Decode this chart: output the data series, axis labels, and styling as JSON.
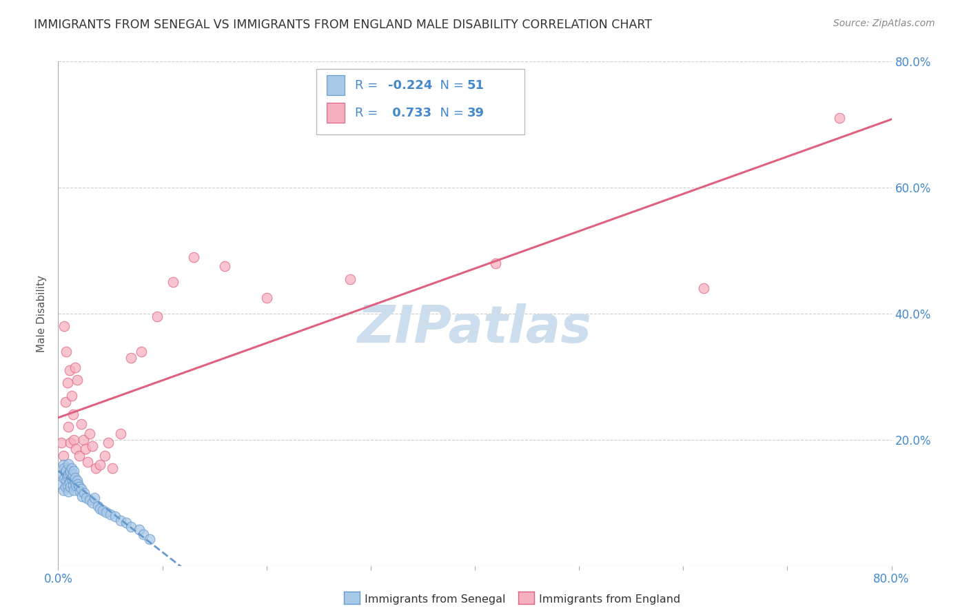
{
  "title": "IMMIGRANTS FROM SENEGAL VS IMMIGRANTS FROM ENGLAND MALE DISABILITY CORRELATION CHART",
  "source": "Source: ZipAtlas.com",
  "ylabel": "Male Disability",
  "xlim": [
    0.0,
    0.8
  ],
  "ylim": [
    0.0,
    0.8
  ],
  "ytick_vals": [
    0.0,
    0.2,
    0.4,
    0.6,
    0.8
  ],
  "ytick_labels": [
    "",
    "20.0%",
    "40.0%",
    "60.0%",
    "80.0%"
  ],
  "xtick_vals": [
    0.0,
    0.1,
    0.2,
    0.3,
    0.4,
    0.5,
    0.6,
    0.7,
    0.8
  ],
  "xtick_labels": [
    "0.0%",
    "",
    "",
    "",
    "",
    "",
    "",
    "",
    "80.0%"
  ],
  "color_senegal": "#a8c8e8",
  "color_england": "#f5b0c0",
  "line_color_senegal": "#6699cc",
  "line_color_england": "#e06080",
  "watermark": "ZIPatlas",
  "watermark_color": "#ccdded",
  "grid_color": "#cccccc",
  "senegal_x": [
    0.003,
    0.004,
    0.005,
    0.005,
    0.006,
    0.006,
    0.007,
    0.007,
    0.008,
    0.008,
    0.009,
    0.009,
    0.01,
    0.01,
    0.01,
    0.011,
    0.011,
    0.012,
    0.012,
    0.013,
    0.013,
    0.014,
    0.014,
    0.015,
    0.015,
    0.016,
    0.016,
    0.017,
    0.018,
    0.019,
    0.02,
    0.021,
    0.022,
    0.023,
    0.025,
    0.027,
    0.03,
    0.033,
    0.035,
    0.038,
    0.04,
    0.043,
    0.046,
    0.05,
    0.055,
    0.06,
    0.065,
    0.07,
    0.078,
    0.082,
    0.088
  ],
  "senegal_y": [
    0.13,
    0.145,
    0.12,
    0.16,
    0.138,
    0.155,
    0.125,
    0.148,
    0.135,
    0.152,
    0.128,
    0.142,
    0.118,
    0.145,
    0.162,
    0.132,
    0.148,
    0.125,
    0.15,
    0.138,
    0.155,
    0.128,
    0.145,
    0.12,
    0.15,
    0.132,
    0.14,
    0.128,
    0.135,
    0.13,
    0.125,
    0.118,
    0.122,
    0.11,
    0.115,
    0.108,
    0.105,
    0.1,
    0.108,
    0.095,
    0.09,
    0.088,
    0.085,
    0.082,
    0.078,
    0.072,
    0.068,
    0.062,
    0.058,
    0.05,
    0.042
  ],
  "england_x": [
    0.003,
    0.005,
    0.006,
    0.007,
    0.008,
    0.009,
    0.01,
    0.011,
    0.012,
    0.013,
    0.014,
    0.015,
    0.016,
    0.017,
    0.018,
    0.02,
    0.022,
    0.024,
    0.026,
    0.028,
    0.03,
    0.033,
    0.036,
    0.04,
    0.045,
    0.048,
    0.052,
    0.06,
    0.07,
    0.08,
    0.095,
    0.11,
    0.13,
    0.16,
    0.2,
    0.28,
    0.42,
    0.62,
    0.75
  ],
  "england_y": [
    0.195,
    0.175,
    0.38,
    0.26,
    0.34,
    0.29,
    0.22,
    0.31,
    0.195,
    0.27,
    0.24,
    0.2,
    0.315,
    0.185,
    0.295,
    0.175,
    0.225,
    0.2,
    0.185,
    0.165,
    0.21,
    0.19,
    0.155,
    0.16,
    0.175,
    0.195,
    0.155,
    0.21,
    0.33,
    0.34,
    0.395,
    0.45,
    0.49,
    0.475,
    0.425,
    0.455,
    0.48,
    0.44,
    0.71
  ]
}
